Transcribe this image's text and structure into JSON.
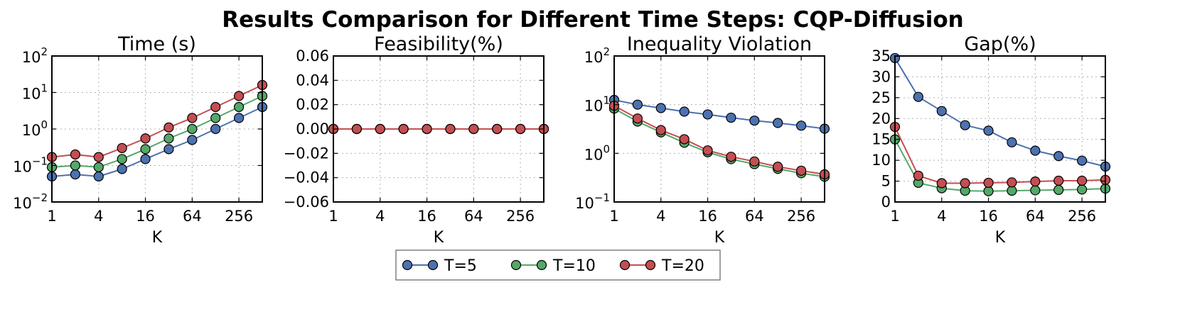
{
  "figure": {
    "suptitle": "Results Comparison for Different Time Steps: CQP-Diffusion"
  },
  "colors": {
    "T5": "#4c72b0",
    "T10": "#55a868",
    "T20": "#c44e52",
    "grid": "#b0b0b0"
  },
  "legend": {
    "items": [
      {
        "label": "T=5",
        "color": "#4c72b0"
      },
      {
        "label": "T=10",
        "color": "#55a868"
      },
      {
        "label": "T=20",
        "color": "#c44e52"
      }
    ]
  },
  "chart_data": [
    {
      "type": "line",
      "title": "Time (s)",
      "xlabel": "K",
      "ylabel": "",
      "xscale": "log2",
      "yscale": "log10",
      "xlim": [
        1,
        512
      ],
      "ylim": [
        0.01,
        100
      ],
      "grid": true,
      "x_ticks": [
        1,
        4,
        16,
        64,
        256
      ],
      "x_tick_labels": [
        "1",
        "4",
        "16",
        "64",
        "256"
      ],
      "y_ticks": [
        0.01,
        0.1,
        1,
        10,
        100
      ],
      "y_tick_labels": [
        {
          "base": "10",
          "exp": "−2"
        },
        {
          "base": "10",
          "exp": "−1"
        },
        {
          "base": "10",
          "exp": "0"
        },
        {
          "base": "10",
          "exp": "1"
        },
        {
          "base": "10",
          "exp": "2"
        }
      ],
      "x": [
        1,
        2,
        4,
        8,
        16,
        32,
        64,
        128,
        256,
        512
      ],
      "series": [
        {
          "name": "T=5",
          "values": [
            0.05,
            0.057,
            0.05,
            0.08,
            0.15,
            0.28,
            0.5,
            1.0,
            2.0,
            4.0
          ]
        },
        {
          "name": "T=10",
          "values": [
            0.09,
            0.1,
            0.09,
            0.15,
            0.28,
            0.55,
            1.0,
            2.0,
            4.0,
            8.0
          ]
        },
        {
          "name": "T=20",
          "values": [
            0.17,
            0.2,
            0.17,
            0.3,
            0.55,
            1.1,
            2.0,
            4.0,
            8.0,
            16.0
          ]
        }
      ]
    },
    {
      "type": "line",
      "title": "Feasibility(%)",
      "xlabel": "K",
      "ylabel": "",
      "xscale": "log2",
      "yscale": "linear",
      "xlim": [
        1,
        512
      ],
      "ylim": [
        -0.06,
        0.06
      ],
      "grid": true,
      "x_ticks": [
        1,
        4,
        16,
        64,
        256
      ],
      "x_tick_labels": [
        "1",
        "4",
        "16",
        "64",
        "256"
      ],
      "y_ticks": [
        -0.06,
        -0.04,
        -0.02,
        0.0,
        0.02,
        0.04,
        0.06
      ],
      "y_tick_labels": [
        "−0.06",
        "−0.04",
        "−0.02",
        "0.00",
        "0.02",
        "0.04",
        "0.06"
      ],
      "x": [
        1,
        2,
        4,
        8,
        16,
        32,
        64,
        128,
        256,
        512
      ],
      "series": [
        {
          "name": "T=5",
          "values": [
            0,
            0,
            0,
            0,
            0,
            0,
            0,
            0,
            0,
            0
          ]
        },
        {
          "name": "T=10",
          "values": [
            0,
            0,
            0,
            0,
            0,
            0,
            0,
            0,
            0,
            0
          ]
        },
        {
          "name": "T=20",
          "values": [
            0,
            0,
            0,
            0,
            0,
            0,
            0,
            0,
            0,
            0
          ]
        }
      ]
    },
    {
      "type": "line",
      "title": "Inequality Violation",
      "xlabel": "K",
      "ylabel": "",
      "xscale": "log2",
      "yscale": "log10",
      "xlim": [
        1,
        512
      ],
      "ylim": [
        0.1,
        100
      ],
      "grid": true,
      "x_ticks": [
        1,
        4,
        16,
        64,
        256
      ],
      "x_tick_labels": [
        "1",
        "4",
        "16",
        "64",
        "256"
      ],
      "y_ticks": [
        0.1,
        1,
        10,
        100
      ],
      "y_tick_labels": [
        {
          "base": "10",
          "exp": "−1"
        },
        {
          "base": "10",
          "exp": "0"
        },
        {
          "base": "10",
          "exp": "1"
        },
        {
          "base": "10",
          "exp": "2"
        }
      ],
      "x": [
        1,
        2,
        4,
        8,
        16,
        32,
        64,
        128,
        256,
        512
      ],
      "series": [
        {
          "name": "T=5",
          "values": [
            12.5,
            10.0,
            8.5,
            7.2,
            6.3,
            5.4,
            4.7,
            4.2,
            3.7,
            3.2
          ]
        },
        {
          "name": "T=10",
          "values": [
            8.3,
            4.5,
            2.7,
            1.65,
            1.05,
            0.76,
            0.6,
            0.48,
            0.39,
            0.33
          ]
        },
        {
          "name": "T=20",
          "values": [
            9.5,
            5.2,
            3.0,
            1.95,
            1.15,
            0.85,
            0.68,
            0.53,
            0.44,
            0.37
          ]
        }
      ]
    },
    {
      "type": "line",
      "title": "Gap(%)",
      "xlabel": "K",
      "ylabel": "",
      "xscale": "log2",
      "yscale": "linear",
      "xlim": [
        1,
        512
      ],
      "ylim": [
        0,
        35
      ],
      "grid": true,
      "x_ticks": [
        1,
        4,
        16,
        64,
        256
      ],
      "x_tick_labels": [
        "1",
        "4",
        "16",
        "64",
        "256"
      ],
      "y_ticks": [
        0,
        5,
        10,
        15,
        20,
        25,
        30,
        35
      ],
      "y_tick_labels": [
        "0",
        "5",
        "10",
        "15",
        "20",
        "25",
        "30",
        "35"
      ],
      "x": [
        1,
        2,
        4,
        8,
        16,
        32,
        64,
        128,
        256,
        512
      ],
      "series": [
        {
          "name": "T=5",
          "values": [
            34.5,
            25.2,
            21.8,
            18.4,
            17.1,
            14.3,
            12.3,
            11.0,
            9.9,
            8.5
          ]
        },
        {
          "name": "T=10",
          "values": [
            15.0,
            4.6,
            3.3,
            2.7,
            2.6,
            2.7,
            2.8,
            2.9,
            3.0,
            3.2
          ]
        },
        {
          "name": "T=20",
          "values": [
            18.0,
            6.3,
            4.5,
            4.5,
            4.6,
            4.7,
            4.9,
            5.1,
            5.1,
            5.3
          ]
        }
      ]
    }
  ]
}
